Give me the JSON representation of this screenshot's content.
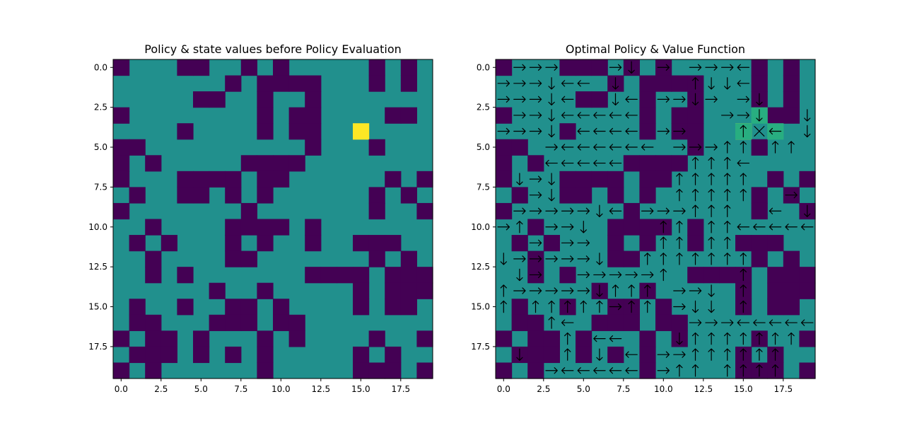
{
  "figure": {
    "background": "#ffffff"
  },
  "chart_data": [
    {
      "type": "heatmap",
      "title": "Policy & state values before Policy Evaluation",
      "xlabel": "",
      "ylabel": "",
      "xlim": [
        -0.5,
        19.5
      ],
      "ylim": [
        19.5,
        -0.5
      ],
      "xticks": [
        0,
        2.5,
        5,
        7.5,
        10,
        12.5,
        15,
        17.5
      ],
      "yticks": [
        0,
        2.5,
        5,
        7.5,
        10,
        12.5,
        15,
        17.5
      ],
      "xtick_labels": [
        "0.0",
        "2.5",
        "5.0",
        "7.5",
        "10.0",
        "12.5",
        "15.0",
        "17.5"
      ],
      "ytick_labels": [
        "0.0",
        "2.5",
        "5.0",
        "7.5",
        "10.0",
        "12.5",
        "15.0",
        "17.5"
      ],
      "grid": false,
      "colors": {
        "wall": "#440154",
        "free": "#21908d",
        "goal": "#fde725"
      },
      "cells": [
        "W...WW..W.W.....W.W.",
        ".......W.WWWW...W.W.W",
        ".....WW..W..W.......",
        "W........W.WW....WW.",
        "....W....W.WW..G....",
        "WW..........W...W...",
        "W.W.....WWWW........",
        "W...WWWW.WW......W.WW",
        ".W..WW.W.W......W.W.",
        "W.......W.......W..W",
        "..W....WWWW.W.......",
        ".W.W...W.W..W..WWW..",
        "..W....WW.......W.W.",
        "..W.W.......WWWW.WWW",
        "......W..W.....W.WWW",
        ".W..W..WW.W....W.WW.",
        ".WW...WWW.WW........",
        "W.WW.W...W.W....W..W",
        ".WWW.W.W.W.....W.W..",
        "W.W......W.....WWW.W."
      ]
    },
    {
      "type": "heatmap",
      "title": "Optimal Policy & Value Function",
      "xlabel": "",
      "ylabel": "",
      "xlim": [
        -0.5,
        19.5
      ],
      "ylim": [
        19.5,
        -0.5
      ],
      "xticks": [
        0,
        2.5,
        5,
        7.5,
        10,
        12.5,
        15,
        17.5
      ],
      "yticks": [
        0,
        2.5,
        5,
        7.5,
        10,
        12.5,
        15,
        17.5
      ],
      "xtick_labels": [
        "0.0",
        "2.5",
        "5.0",
        "7.5",
        "10.0",
        "12.5",
        "15.0",
        "17.5"
      ],
      "ytick_labels": [
        "0.0",
        "2.5",
        "5.0",
        "7.5",
        "10.0",
        "12.5",
        "15.0",
        "17.5"
      ],
      "grid": false,
      "colors": {
        "wall": "#440154",
        "free": "#21908d",
        "near": "#28ae80",
        "goal": "#fde725",
        "arrow": "#000000"
      },
      "cells": [
        "W...WWW.W.W.....W.W.",
        ".......W.WWWW...W.W.W",
        ".....WW..W..W...W.W.",
        "W........W.WW....WW.",
        "....W....W.WW..G....",
        "WW..........W...W...",
        "W.W.....WWWW........",
        "W...WWWW.WW......W.WW",
        ".W..WW.W.W......W.W.",
        "W.......W.......W..W",
        "..W....WWWW.W.......",
        ".W.W...W.W..W..WWW..",
        "..W....WW.......W.W.",
        "..W.W.......WWWW.WWW",
        "......W..W.....W.WWW",
        ".W..W..WW.W....W.WW.",
        ".WW...WWW.WW........",
        "W.WW.W...W.W....W..W",
        ".WWW.W.W.W.....W.W..",
        "W.W......W.....WWW.W."
      ],
      "value_highlights": [
        {
          "row": 3,
          "col": 16,
          "level": "near"
        },
        {
          "row": 4,
          "col": 15,
          "level": "near"
        },
        {
          "row": 4,
          "col": 17,
          "level": "near"
        }
      ],
      "policy": [
        {
          "row": 0,
          "cols": [
            1,
            2,
            3,
            7,
            8,
            10,
            12,
            13,
            14,
            15
          ],
          "dirs": [
            "R",
            "R",
            "R",
            "R",
            "D",
            "R",
            "R",
            "R",
            "R",
            "L"
          ]
        },
        {
          "row": 1,
          "cols": [
            0,
            1,
            2,
            3,
            4,
            5,
            7,
            12,
            13,
            14,
            15
          ],
          "dirs": [
            "R",
            "R",
            "R",
            "D",
            "L",
            "L",
            "D",
            "U",
            "D",
            "D",
            "L"
          ]
        },
        {
          "row": 2,
          "cols": [
            0,
            1,
            2,
            3,
            4,
            7,
            8,
            10,
            11,
            12,
            13,
            15,
            16
          ],
          "dirs": [
            "R",
            "R",
            "R",
            "D",
            "L",
            "D",
            "L",
            "R",
            "R",
            "D",
            "R",
            "R",
            "D"
          ]
        },
        {
          "row": 3,
          "cols": [
            1,
            2,
            3,
            4,
            5,
            6,
            7,
            8,
            14,
            15,
            16,
            19
          ],
          "dirs": [
            "R",
            "R",
            "D",
            "L",
            "L",
            "L",
            "L",
            "L",
            "R",
            "R",
            "D",
            "D"
          ]
        },
        {
          "row": 4,
          "cols": [
            0,
            1,
            2,
            3,
            5,
            6,
            7,
            8,
            10,
            11,
            15,
            16,
            17,
            19
          ],
          "dirs": [
            "R",
            "R",
            "R",
            "D",
            "L",
            "L",
            "L",
            "L",
            "R",
            "R",
            "U",
            "X",
            "L",
            "D"
          ]
        },
        {
          "row": 5,
          "cols": [
            3,
            4,
            5,
            6,
            7,
            8,
            9,
            11,
            12,
            13,
            14,
            15,
            17,
            18
          ],
          "dirs": [
            "R",
            "L",
            "L",
            "L",
            "L",
            "L",
            "L",
            "R",
            "R",
            "R",
            "U",
            "U",
            "U",
            "U"
          ]
        },
        {
          "row": 6,
          "cols": [
            3,
            4,
            5,
            6,
            7,
            12,
            13,
            14,
            15
          ],
          "dirs": [
            "L",
            "L",
            "L",
            "L",
            "L",
            "U",
            "U",
            "U",
            "L"
          ]
        },
        {
          "row": 7,
          "cols": [
            1,
            2,
            3,
            11,
            12,
            13,
            14,
            15
          ],
          "dirs": [
            "D",
            "R",
            "D",
            "U",
            "U",
            "U",
            "U",
            "U"
          ]
        },
        {
          "row": 8,
          "cols": [
            2,
            3,
            11,
            12,
            13,
            14,
            15,
            18
          ],
          "dirs": [
            "R",
            "D",
            "U",
            "U",
            "U",
            "U",
            "U",
            "R"
          ]
        },
        {
          "row": 9,
          "cols": [
            1,
            2,
            3,
            4,
            5,
            6,
            7,
            9,
            10,
            11,
            12,
            13,
            14,
            17,
            19
          ],
          "dirs": [
            "R",
            "R",
            "R",
            "R",
            "R",
            "D",
            "L",
            "R",
            "R",
            "R",
            "U",
            "U",
            "U",
            "L",
            "D"
          ]
        },
        {
          "row": 10,
          "cols": [
            0,
            1,
            3,
            4,
            5,
            10,
            11,
            13,
            14,
            15,
            16,
            17,
            18,
            19
          ],
          "dirs": [
            "R",
            "U",
            "R",
            "R",
            "D",
            "U",
            "U",
            "U",
            "U",
            "L",
            "L",
            "L",
            "L",
            "L"
          ]
        },
        {
          "row": 11,
          "cols": [
            2,
            4,
            5,
            10,
            11,
            13,
            14
          ],
          "dirs": [
            "R",
            "R",
            "R",
            "U",
            "U",
            "U",
            "U"
          ]
        },
        {
          "row": 12,
          "cols": [
            0,
            1,
            2,
            3,
            4,
            5,
            6,
            9,
            10,
            11,
            12,
            13,
            14,
            15
          ],
          "dirs": [
            "D",
            "R",
            "R",
            "R",
            "R",
            "R",
            "D",
            "U",
            "U",
            "U",
            "U",
            "U",
            "U",
            "U"
          ]
        },
        {
          "row": 13,
          "cols": [
            1,
            2,
            5,
            6,
            7,
            8,
            9,
            10,
            15
          ],
          "dirs": [
            "D",
            "R",
            "R",
            "R",
            "R",
            "R",
            "R",
            "U",
            "U"
          ]
        },
        {
          "row": 14,
          "cols": [
            0,
            1,
            2,
            3,
            4,
            5,
            6,
            7,
            8,
            9,
            11,
            12,
            13,
            15
          ],
          "dirs": [
            "U",
            "R",
            "R",
            "R",
            "R",
            "R",
            "D",
            "U",
            "U",
            "U",
            "R",
            "R",
            "D",
            "U"
          ]
        },
        {
          "row": 15,
          "cols": [
            0,
            2,
            3,
            4,
            5,
            6,
            7,
            8,
            9,
            11,
            12,
            13,
            15
          ],
          "dirs": [
            "U",
            "U",
            "U",
            "U",
            "U",
            "U",
            "R",
            "U",
            "U",
            "R",
            "D",
            "D",
            "U"
          ]
        },
        {
          "row": 16,
          "cols": [
            3,
            4,
            12,
            13,
            14,
            15,
            16,
            17,
            18,
            19
          ],
          "dirs": [
            "U",
            "L",
            "R",
            "R",
            "R",
            "L",
            "L",
            "L",
            "L",
            "L"
          ]
        },
        {
          "row": 17,
          "cols": [
            4,
            6,
            7,
            11,
            12,
            13,
            14,
            15,
            16,
            17,
            18
          ],
          "dirs": [
            "U",
            "L",
            "L",
            "D",
            "U",
            "U",
            "U",
            "U",
            "U",
            "U",
            "U"
          ]
        },
        {
          "row": 18,
          "cols": [
            1,
            4,
            6,
            8,
            10,
            11,
            12,
            13,
            14,
            15,
            16,
            17
          ],
          "dirs": [
            "D",
            "U",
            "D",
            "L",
            "R",
            "R",
            "U",
            "U",
            "U",
            "U",
            "U",
            "U"
          ]
        },
        {
          "row": 19,
          "cols": [
            3,
            4,
            5,
            6,
            7,
            8,
            10,
            11,
            12,
            14,
            15,
            16,
            17
          ],
          "dirs": [
            "R",
            "L",
            "L",
            "L",
            "L",
            "L",
            "R",
            "U",
            "U",
            "U",
            "U",
            "U",
            "U"
          ]
        }
      ]
    }
  ]
}
